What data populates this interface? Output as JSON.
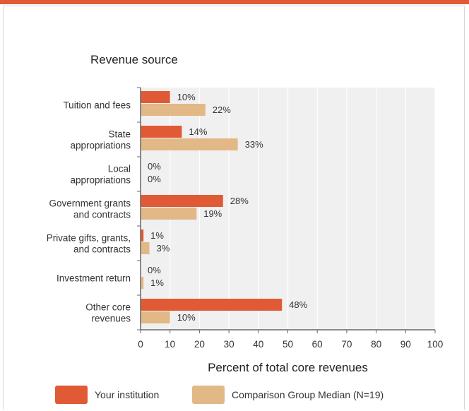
{
  "colors": {
    "accent_bar": "#e05a36",
    "your_institution": "#e05a36",
    "comparison_median": "#e2b887",
    "plot_background": "#f0f0f0",
    "grid": "#ffffff",
    "axis": "#666666",
    "text": "#333333"
  },
  "chart_data": {
    "type": "bar",
    "orientation": "horizontal",
    "title": "Revenue source",
    "xlabel": "Percent of total core revenues",
    "ylabel": "",
    "xlim": [
      0,
      100
    ],
    "xticks": [
      0,
      10,
      20,
      30,
      40,
      50,
      60,
      70,
      80,
      90,
      100
    ],
    "categories": [
      [
        "Tuition and fees"
      ],
      [
        "State",
        "appropriations"
      ],
      [
        "Local",
        "appropriations"
      ],
      [
        "Government grants",
        "and contracts"
      ],
      [
        "Private gifts, grants,",
        "and contracts"
      ],
      [
        "Investment return"
      ],
      [
        "Other core",
        "revenues"
      ]
    ],
    "series": [
      {
        "name": "Your institution",
        "color": "#e05a36",
        "values": [
          10,
          14,
          0,
          28,
          1,
          0,
          48
        ],
        "labels": [
          "10%",
          "14%",
          "0%",
          "28%",
          "1%",
          "0%",
          "48%"
        ]
      },
      {
        "name": "Comparison Group Median (N=19)",
        "color": "#e2b887",
        "values": [
          22,
          33,
          0,
          19,
          3,
          1,
          10
        ],
        "labels": [
          "22%",
          "33%",
          "0%",
          "19%",
          "3%",
          "1%",
          "10%"
        ]
      }
    ],
    "grid": true,
    "legend_position": "bottom"
  }
}
